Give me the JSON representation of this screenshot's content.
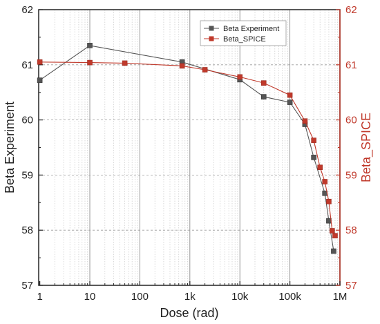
{
  "chart_data": {
    "type": "line",
    "xlabel": "Dose (rad)",
    "ylabel_left": "Beta Experiment",
    "ylabel_right": "Beta_SPICE",
    "x_scale": "log",
    "xlim": [
      0.95,
      1000000
    ],
    "ylim": [
      57,
      62
    ],
    "x_tick_values": [
      1,
      10,
      100,
      1000,
      10000,
      100000,
      1000000
    ],
    "x_tick_labels": [
      "1",
      "10",
      "100",
      "1k",
      "10k",
      "100k",
      "1M"
    ],
    "y_ticks": [
      57,
      58,
      59,
      60,
      61,
      62
    ],
    "grid": true,
    "legend_position": "top-right",
    "series": [
      {
        "name": "Beta Experiment",
        "color": "#555555",
        "marker": "square",
        "x": [
          1,
          10,
          700,
          10000,
          30000,
          100000,
          200000,
          300000,
          500000,
          600000,
          750000
        ],
        "y": [
          60.72,
          61.35,
          61.05,
          60.73,
          60.42,
          60.32,
          59.92,
          59.32,
          58.67,
          58.17,
          57.62
        ]
      },
      {
        "name": "Beta_SPICE",
        "color": "#c0392b",
        "marker": "square",
        "x": [
          1,
          10,
          50,
          700,
          2000,
          10000,
          30000,
          100000,
          200000,
          300000,
          400000,
          500000,
          600000,
          700000,
          800000
        ],
        "y": [
          61.05,
          61.04,
          61.03,
          60.98,
          60.91,
          60.78,
          60.67,
          60.45,
          59.98,
          59.63,
          59.14,
          58.88,
          58.52,
          57.99,
          57.9
        ]
      }
    ]
  }
}
